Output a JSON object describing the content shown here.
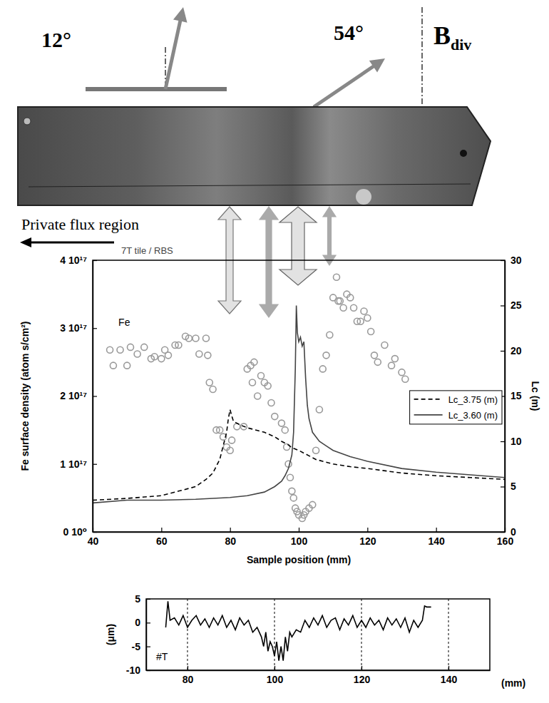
{
  "chart_data": [
    {
      "type": "scatter",
      "xlabel": "Sample position (mm)",
      "ylabel": "Fe surface density (atom s/cm²)",
      "y2label": "Lc (m)",
      "xlim": [
        40,
        160
      ],
      "xticks": [
        40,
        60,
        80,
        100,
        120,
        140,
        160
      ],
      "ylim": [
        0,
        4e+17
      ],
      "yticks": [
        {
          "value": 0,
          "label": "0 10⁰"
        },
        {
          "value": 1e+17,
          "label": "1 10¹⁷"
        },
        {
          "value": 2e+17,
          "label": "2 10¹⁷"
        },
        {
          "value": 3e+17,
          "label": "3 10¹⁷"
        },
        {
          "value": 4e+17,
          "label": "4 10¹⁷"
        }
      ],
      "y2lim": [
        0,
        30
      ],
      "y2ticks": [
        0,
        5,
        10,
        15,
        20,
        25,
        30
      ],
      "legend": "right",
      "series": [
        {
          "name": "Fe",
          "type": "scatter",
          "marker": "open-circle",
          "color": "#9a9a9a",
          "x": [
            45,
            46,
            48,
            50,
            51,
            53,
            55,
            57,
            58,
            60,
            61,
            62,
            64,
            65,
            67,
            68,
            70,
            71,
            73,
            73.5,
            74,
            75,
            76,
            77,
            78,
            79,
            80,
            80.5,
            82,
            84,
            85,
            86,
            86.5,
            87,
            88,
            89,
            90,
            91,
            92,
            93,
            95,
            96,
            96.5,
            97,
            97.5,
            98,
            98.5,
            99,
            99.5,
            100,
            101,
            101.5,
            102,
            103,
            104,
            105,
            106,
            107,
            108,
            109,
            110,
            111,
            111.5,
            112,
            113,
            114,
            115,
            116,
            117,
            118,
            119,
            120,
            121,
            122,
            123,
            125,
            127,
            128,
            130,
            131
          ],
          "values": [
            2.68e+17,
            2.45e+17,
            2.68e+17,
            2.45e+17,
            2.72e+17,
            2.62e+17,
            2.72e+17,
            2.55e+17,
            2.58e+17,
            2.55e+17,
            2.68e+17,
            2.6e+17,
            2.75e+17,
            2.75e+17,
            2.88e+17,
            2.85e+17,
            2.85e+17,
            2.62e+17,
            2.85e+17,
            2.6e+17,
            2.2e+17,
            2.1e+17,
            1.5e+17,
            1.5e+17,
            1.4e+17,
            1.25e+17,
            1.2e+17,
            1.35e+17,
            1.55e+17,
            1.55e+17,
            2.4e+17,
            2.45e+17,
            2.2e+17,
            2.5e+17,
            2e+17,
            2.3e+17,
            2.2e+17,
            2.15e+17,
            1.9e+17,
            1.7e+17,
            1.6e+17,
            1.5e+17,
            1.25e+17,
            1e+17,
            8e+16,
            6e+16,
            5e+16,
            3.5e+16,
            3e+16,
            2.5e+16,
            2e+16,
            2.5e+16,
            3e+16,
            3.5e+16,
            4e+16,
            1.2e+17,
            1.8e+17,
            2.4e+17,
            2.6e+17,
            2.9e+17,
            3.45e+17,
            3.75e+17,
            3.4e+17,
            3.4e+17,
            3.3e+17,
            3.5e+17,
            3.45e+17,
            3.3e+17,
            3.1e+17,
            3.1e+17,
            3.25e+17,
            3.15e+17,
            2.95e+17,
            2.6e+17,
            2.5e+17,
            2.75e+17,
            2.45e+17,
            2.55e+17,
            2.35e+17,
            2.25e+17
          ]
        },
        {
          "name": "Lc_3.75 (m)",
          "type": "line",
          "line_style": "dashed",
          "color": "#000000",
          "axis": "y2",
          "x": [
            40,
            50,
            60,
            65,
            70,
            73,
            75,
            77,
            78,
            79,
            79.5,
            80,
            80.5,
            81,
            83,
            85,
            88,
            90,
            93,
            95,
            97,
            98,
            100,
            102,
            105,
            110,
            115,
            120,
            130,
            140,
            150,
            160
          ],
          "values": [
            3.5,
            3.7,
            4.0,
            4.5,
            5.0,
            5.8,
            6.5,
            8.0,
            9.5,
            11,
            12.5,
            13.5,
            12.8,
            12.2,
            11.8,
            11.5,
            11.2,
            11,
            10.5,
            10,
            9.6,
            9.3,
            9,
            8.6,
            8,
            7.5,
            7.2,
            7,
            6.5,
            6.2,
            6,
            5.8
          ]
        },
        {
          "name": "Lc_3.60 (m)",
          "type": "line",
          "line_style": "solid",
          "color": "#444444",
          "axis": "y2",
          "x": [
            40,
            50,
            60,
            70,
            80,
            85,
            90,
            93,
            95,
            96,
            97,
            98,
            98.5,
            99,
            99.3,
            99.6,
            100,
            100.5,
            101,
            101.5,
            102,
            102.5,
            103,
            104,
            106,
            108,
            110,
            115,
            120,
            130,
            140,
            150,
            160
          ],
          "values": [
            3.2,
            3.5,
            3.5,
            3.6,
            3.8,
            4.0,
            4.4,
            5.0,
            5.6,
            6.2,
            7.0,
            8.5,
            11,
            18,
            25,
            22,
            21,
            21.5,
            20.5,
            21,
            17,
            14,
            12.5,
            11,
            10,
            9.5,
            9,
            8.3,
            7.8,
            7,
            6.6,
            6.3,
            6
          ]
        }
      ]
    },
    {
      "type": "line",
      "xlabel": "(mm)",
      "ylabel": "(μm)",
      "xlim": [
        70.5,
        149.5
      ],
      "xticks": [
        80,
        100,
        120,
        140
      ],
      "ylim": [
        -10,
        5
      ],
      "yticks": [
        -10,
        -5,
        0,
        5
      ],
      "grid": true,
      "series": [
        {
          "name": "#T",
          "color": "#000000",
          "line_style": "solid",
          "x": [
            75,
            75.5,
            76,
            77,
            78,
            79,
            80,
            81,
            82,
            83,
            84,
            85,
            86,
            87,
            88,
            89,
            90,
            91,
            92,
            93,
            94,
            95,
            96,
            97,
            97.5,
            98,
            98.5,
            99,
            99.5,
            100,
            100.5,
            101,
            101.5,
            102,
            102.5,
            103,
            103.5,
            104,
            105,
            106,
            107,
            108,
            109,
            110,
            111,
            112,
            113,
            114,
            115,
            116,
            117,
            118,
            119,
            120,
            121,
            122,
            123,
            124,
            125,
            126,
            127,
            128,
            129,
            130,
            131,
            132,
            133,
            134,
            134.5,
            135,
            136
          ],
          "values": [
            -1,
            4.5,
            0.5,
            1,
            -0.5,
            1.5,
            -1,
            0.5,
            1.5,
            -0.5,
            0.8,
            -1,
            1,
            -0.5,
            1.5,
            -1,
            0.5,
            -1.5,
            1,
            -0.5,
            0.5,
            -2,
            -1,
            -3,
            -5,
            -2,
            -6,
            -4,
            -5,
            -7,
            -4,
            -8,
            -5,
            -8,
            -3,
            -6,
            -2,
            -3,
            -1.5,
            -2,
            0.5,
            -1,
            1,
            -0.5,
            1.5,
            -1,
            0.5,
            1,
            -1.5,
            0.8,
            -0.5,
            1.5,
            -1,
            0.5,
            -1,
            1,
            -0.5,
            0.5,
            -1.5,
            1,
            -0.5,
            0.8,
            -1,
            1,
            -2,
            0.5,
            -1,
            0.5,
            3.5,
            3.3,
            3.3
          ]
        }
      ]
    }
  ],
  "diagram": {
    "angle_left": "12°",
    "angle_right": "54°",
    "field": {
      "text": "B",
      "subscript": "div"
    },
    "region": "Private flux region",
    "probe": "7T tile / RBS"
  }
}
